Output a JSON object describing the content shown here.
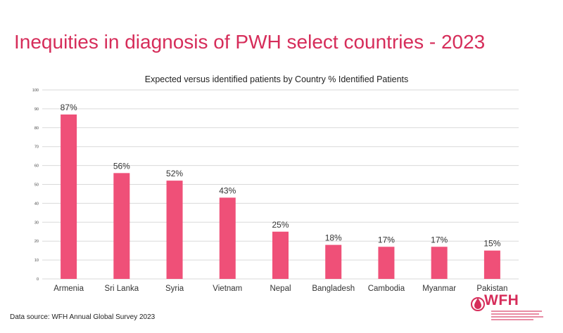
{
  "slide": {
    "title": "Inequities in diagnosis of PWH select countries - 2023",
    "source": "Data source: WFH Annual Global Survey 2023",
    "logo_text": "WFH"
  },
  "colors": {
    "title": "#d62d5a",
    "bar": "#ef5078",
    "grid": "#d9d9d9"
  },
  "chart_data": {
    "type": "bar",
    "title": "Expected versus identified patients by Country % Identified Patients",
    "categories": [
      "Armenia",
      "Sri Lanka",
      "Syria",
      "Vietnam",
      "Nepal",
      "Bangladesh",
      "Cambodia",
      "Myanmar",
      "Pakistan"
    ],
    "values": [
      87,
      56,
      52,
      43,
      25,
      18,
      17,
      17,
      15
    ],
    "data_labels": [
      "87%",
      "56%",
      "52%",
      "43%",
      "25%",
      "18%",
      "17%",
      "17%",
      "15%"
    ],
    "xlabel": "",
    "ylabel": "",
    "ylim": [
      0,
      100
    ],
    "yticks": [
      0,
      10,
      20,
      30,
      40,
      50,
      60,
      70,
      80,
      90,
      100
    ],
    "grid": true,
    "legend": "none"
  }
}
